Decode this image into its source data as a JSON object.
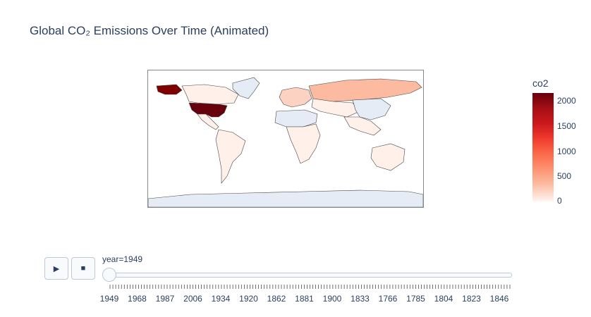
{
  "title": "Global CO₂ Emissions Over Time (Animated)",
  "colorbar": {
    "title": "co2",
    "ticks": [
      "2000",
      "1500",
      "1000",
      "500",
      "0"
    ],
    "colors": [
      "#67000d",
      "#a50f15",
      "#cb181d",
      "#ef3b2c",
      "#fb6a4a",
      "#fc9272",
      "#fcbba1",
      "#fff5f0"
    ]
  },
  "map": {
    "colors": {
      "no_data": "#e5ecf6",
      "usa": "#67000d",
      "canada": "#7f0000",
      "russia": "#fcbba1",
      "europe": "#fcd3c3",
      "light": "#fff0ea",
      "border": "#444444"
    }
  },
  "controls": {
    "play_icon": "▶",
    "stop_icon": "■"
  },
  "slider": {
    "current_label": "year=1949",
    "tick_labels": [
      "1949",
      "1968",
      "1987",
      "2006",
      "1934",
      "1920",
      "1862",
      "1881",
      "1900",
      "1833",
      "1766",
      "1785",
      "1804",
      "1823",
      "1846"
    ]
  }
}
